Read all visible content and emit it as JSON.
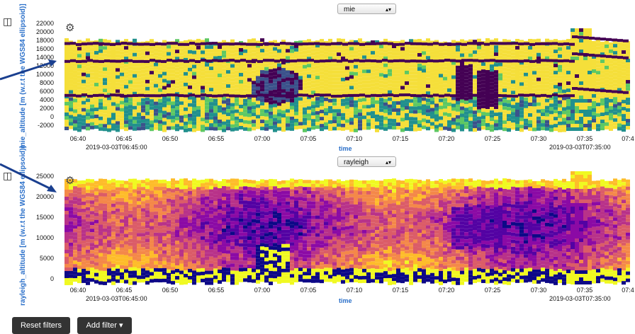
{
  "charts": [
    {
      "selector": "mie",
      "ylabel": "mie_altitude [m (w.r.t the WGS84 ellipsoid)]",
      "yticks": [
        "22000",
        "20000",
        "18000",
        "16000",
        "14000",
        "12000",
        "10000",
        "8000",
        "6000",
        "4000",
        "2000",
        "0",
        "-2000"
      ],
      "xticks": [
        "06:40",
        "06:45",
        "06:50",
        "06:55",
        "07:00",
        "07:05",
        "07:10",
        "07:15",
        "07:20",
        "07:25",
        "07:30",
        "07:35",
        "07:4"
      ],
      "date_left": "2019-03-03T06:45:00",
      "date_right": "2019-03-03T07:35:00",
      "xlabel": "time"
    },
    {
      "selector": "rayleigh",
      "ylabel": "rayleigh_altitude [m (w.r.t the WGS84 ellipsoid)]",
      "yticks": [
        "25000",
        "20000",
        "15000",
        "10000",
        "5000",
        "0"
      ],
      "xticks": [
        "06:40",
        "06:45",
        "06:50",
        "06:55",
        "07:00",
        "07:05",
        "07:10",
        "07:15",
        "07:20",
        "07:25",
        "07:30",
        "07:35",
        "07:4"
      ],
      "date_left": "2019-03-03T06:45:00",
      "date_right": "2019-03-03T07:35:00",
      "xlabel": "time"
    }
  ],
  "chart_data": [
    {
      "type": "heatmap",
      "x_range": [
        "2019-03-03T06:38:00",
        "2019-03-03T07:41:00"
      ],
      "ylim": [
        -2000,
        23000
      ],
      "colormap": "viridis",
      "features": [
        {
          "altitude": 17200,
          "kind": "band"
        },
        {
          "altitude": 14000,
          "kind": "band"
        },
        {
          "altitude": 6000,
          "kind": "band"
        }
      ],
      "grid": false
    },
    {
      "type": "heatmap",
      "x_range": [
        "2019-03-03T06:38:00",
        "2019-03-03T07:41:00"
      ],
      "ylim": [
        -1500,
        27000
      ],
      "colormap": "plasma",
      "grid": false
    }
  ],
  "buttons": {
    "reset": "Reset filters",
    "add": "Add filter ▾"
  },
  "colors": {
    "axis_label": "#2a6fc9",
    "button_bg": "#333333",
    "arrow": "#1a3f8f"
  }
}
